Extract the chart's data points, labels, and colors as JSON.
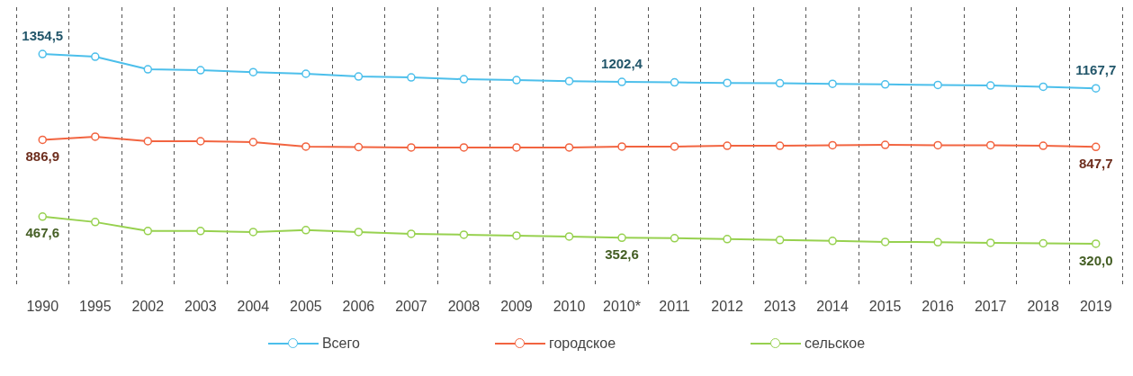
{
  "chart_data": {
    "type": "line",
    "categories": [
      "1990",
      "1995",
      "2002",
      "2003",
      "2004",
      "2005",
      "2006",
      "2007",
      "2008",
      "2009",
      "2010",
      "2010*",
      "2011",
      "2012",
      "2013",
      "2014",
      "2015",
      "2016",
      "2017",
      "2018",
      "2019"
    ],
    "series": [
      {
        "name": "Всего",
        "color": "#4cbfeb",
        "values": [
          1354.5,
          1340,
          1271,
          1266,
          1256,
          1247,
          1232,
          1227,
          1217,
          1212,
          1207,
          1202.4,
          1200,
          1197,
          1195,
          1192,
          1189,
          1186,
          1183,
          1176,
          1167.7
        ],
        "value_labels": [
          "1354,5",
          null,
          null,
          null,
          null,
          null,
          null,
          null,
          null,
          null,
          null,
          "1202,4",
          null,
          null,
          null,
          null,
          null,
          null,
          null,
          null,
          "1167,7"
        ]
      },
      {
        "name": "городское",
        "color": "#f26440",
        "values": [
          886.9,
          904,
          879,
          879,
          874,
          850,
          847,
          845,
          845,
          845,
          845,
          850,
          850,
          854,
          854,
          857,
          859,
          857,
          857,
          854,
          847.7
        ],
        "value_labels": [
          "886,9",
          null,
          null,
          null,
          null,
          null,
          null,
          null,
          null,
          null,
          null,
          null,
          null,
          null,
          null,
          null,
          null,
          null,
          null,
          null,
          "847,7"
        ]
      },
      {
        "name": "сельское",
        "color": "#97d14f",
        "values": [
          467.6,
          438,
          389,
          389,
          384,
          394,
          384,
          374,
          369,
          364,
          359,
          352.6,
          350,
          345,
          340,
          335,
          330,
          328,
          325,
          322,
          320.0
        ],
        "value_labels": [
          "467,6",
          null,
          null,
          null,
          null,
          null,
          null,
          null,
          null,
          null,
          null,
          "352,6",
          null,
          null,
          null,
          null,
          null,
          null,
          null,
          null,
          "320,0"
        ]
      }
    ],
    "ylim": [
      90,
      1610
    ],
    "grid": "x",
    "legend": "bottom",
    "marker": "circle",
    "line_style": "solid",
    "tick_labels": "x"
  }
}
